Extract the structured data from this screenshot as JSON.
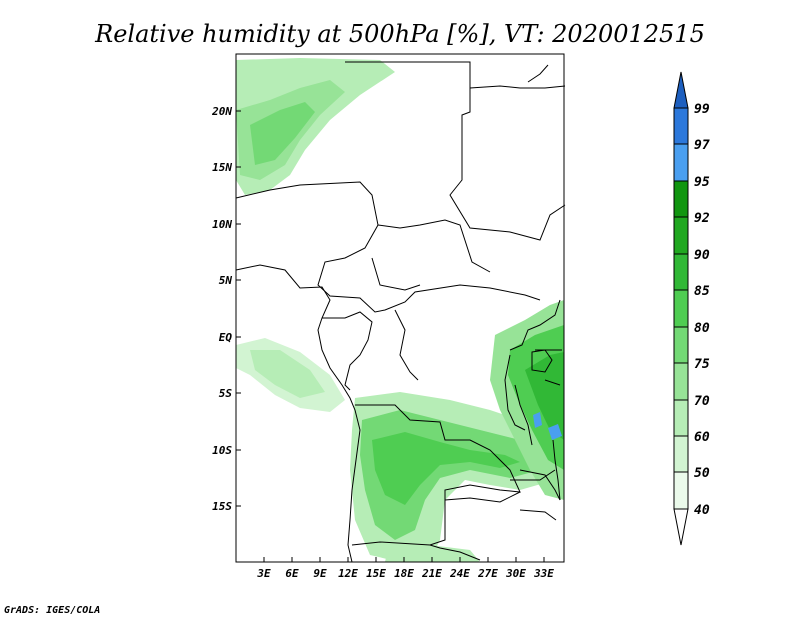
{
  "title": "Relative humidity at 500hPa [%], VT: 2020012515",
  "credit": "GrADS: IGES/COLA",
  "map": {
    "lat_range": [
      -20,
      25
    ],
    "lon_range": [
      0,
      35
    ],
    "lat_ticks": [
      "20N",
      "15N",
      "10N",
      "5N",
      "EQ",
      "5S",
      "10S",
      "15S"
    ],
    "lon_ticks": [
      "3E",
      "6E",
      "9E",
      "12E",
      "15E",
      "18E",
      "21E",
      "24E",
      "27E",
      "30E",
      "33E"
    ]
  },
  "colorbar": {
    "levels": [
      "99",
      "97",
      "95",
      "92",
      "90",
      "85",
      "80",
      "75",
      "70",
      "60",
      "50",
      "40"
    ],
    "colors": {
      "top_arrow": "#1d5fbf",
      "c97_99": "#2c78db",
      "c95_97": "#4a9ff0",
      "c92_95": "#119610",
      "c90_92": "#20a820",
      "c85_90": "#31b836",
      "c80_85": "#4fcd52",
      "c75_80": "#73d975",
      "c70_75": "#97e397",
      "c60_70": "#b6edb6",
      "c50_60": "#d2f4d2",
      "c40_50": "#ebfaeb",
      "bottom_arrow": "#ffffff"
    }
  }
}
